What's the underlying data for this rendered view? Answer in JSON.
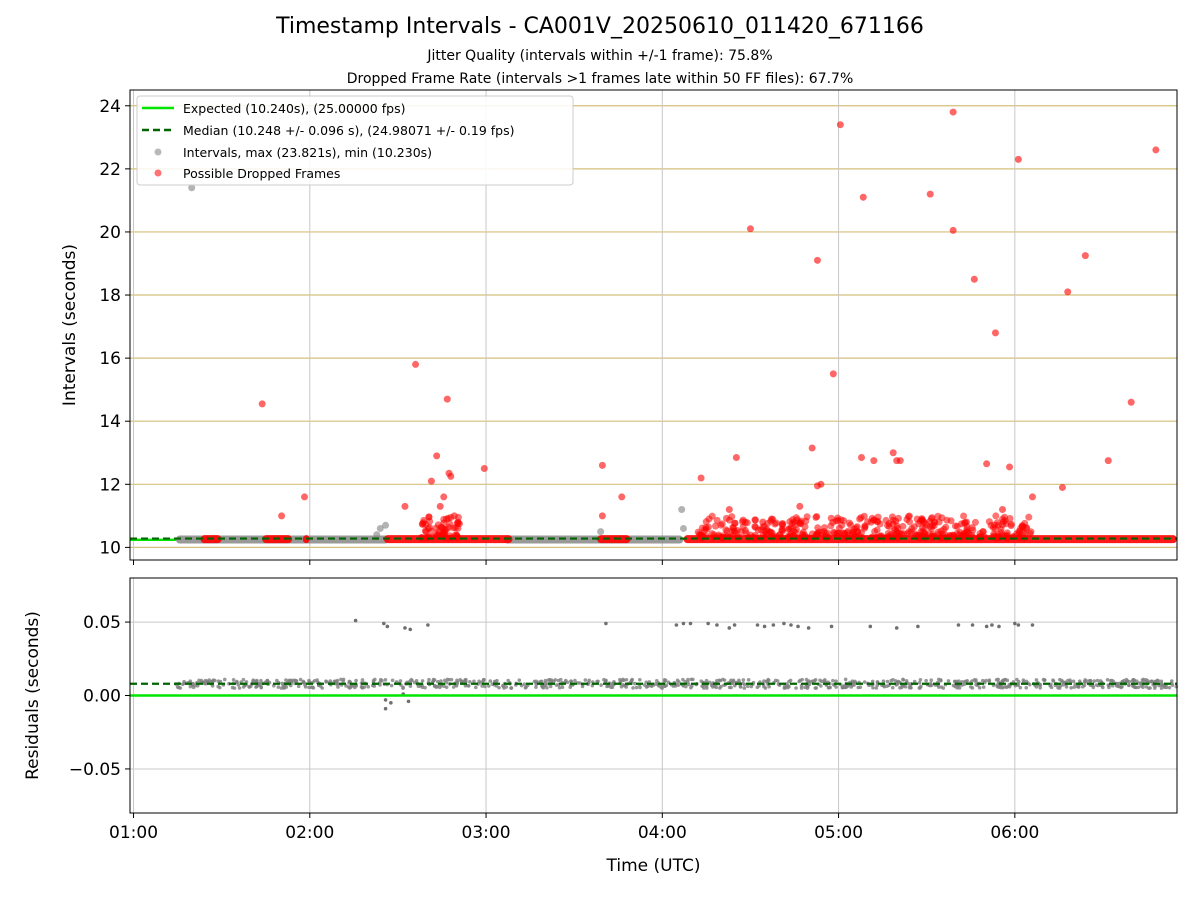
{
  "title": "Timestamp Intervals - CA001V_20250610_011420_671166",
  "subtitle_1": "Jitter Quality (intervals within +/-1 frame): 75.8%",
  "subtitle_2": "Dropped Frame Rate (intervals >1 frames late within 50 FF files): 67.7%",
  "colors": {
    "expected": "#00e600",
    "median": "#006400",
    "intervals": "#808080",
    "dropped": "#ff0000",
    "hgrid_top": "#d4bf7a",
    "grid": "#c8c8c8"
  },
  "chart_data": [
    {
      "type": "scatter",
      "ylabel": "Intervals (seconds)",
      "ylim": [
        9.6,
        24.5
      ],
      "yticks": [
        10,
        12,
        14,
        16,
        18,
        20,
        22,
        24
      ],
      "xlim": [
        0.98,
        6.92
      ],
      "xticks": [
        1,
        2,
        3,
        4,
        5,
        6
      ],
      "xtick_labels": [
        "01:00",
        "02:00",
        "03:00",
        "04:00",
        "05:00",
        "06:00"
      ],
      "grid": true,
      "legend_position": "upper-left",
      "legend": [
        "Expected (10.240s), (25.00000 fps)",
        "Median (10.248 +/- 0.096 s), (24.98071 +/- 0.19 fps)",
        "Intervals, max (23.821s), min (10.230s)",
        "Possible Dropped Frames"
      ],
      "expected_y": 10.24,
      "median_y": 10.248,
      "intervals_band": {
        "y": 10.248,
        "x_ranges": [
          [
            1.24,
            2.45
          ],
          [
            3.1,
            4.12
          ]
        ]
      },
      "intervals_points": [
        [
          1.33,
          21.4
        ],
        [
          2.38,
          10.4
        ],
        [
          2.4,
          10.6
        ],
        [
          2.43,
          10.7
        ],
        [
          3.65,
          10.5
        ],
        [
          4.11,
          11.2
        ],
        [
          4.12,
          10.6
        ]
      ],
      "dropped_bands": [
        {
          "y": 10.26,
          "x_ranges": [
            [
              1.38,
              1.5
            ],
            [
              1.73,
              1.9
            ],
            [
              1.96,
              2.0
            ],
            [
              2.42,
              3.15
            ],
            [
              3.63,
              3.82
            ],
            [
              4.12,
              6.92
            ]
          ]
        }
      ],
      "dropped_points": [
        [
          1.73,
          14.55
        ],
        [
          1.84,
          11.0
        ],
        [
          1.97,
          11.6
        ],
        [
          2.54,
          11.3
        ],
        [
          2.6,
          15.8
        ],
        [
          2.66,
          10.5
        ],
        [
          2.69,
          12.1
        ],
        [
          2.72,
          12.9
        ],
        [
          2.74,
          11.3
        ],
        [
          2.76,
          11.6
        ],
        [
          2.78,
          14.7
        ],
        [
          2.79,
          12.35
        ],
        [
          2.8,
          12.25
        ],
        [
          2.82,
          11.0
        ],
        [
          2.84,
          10.8
        ],
        [
          2.99,
          12.5
        ],
        [
          3.66,
          12.6
        ],
        [
          3.66,
          11.0
        ],
        [
          3.77,
          11.6
        ],
        [
          4.22,
          12.2
        ],
        [
          4.38,
          11.2
        ],
        [
          4.42,
          12.85
        ],
        [
          4.5,
          20.1
        ],
        [
          4.57,
          10.8
        ],
        [
          4.62,
          10.9
        ],
        [
          4.72,
          10.6
        ],
        [
          4.78,
          11.3
        ],
        [
          4.85,
          13.15
        ],
        [
          4.88,
          19.1
        ],
        [
          4.88,
          11.95
        ],
        [
          4.9,
          12.0
        ],
        [
          4.97,
          15.5
        ],
        [
          5.01,
          23.4
        ],
        [
          5.13,
          12.85
        ],
        [
          5.14,
          21.1
        ],
        [
          5.2,
          12.75
        ],
        [
          5.31,
          13.0
        ],
        [
          5.33,
          12.75
        ],
        [
          5.35,
          12.75
        ],
        [
          5.52,
          21.2
        ],
        [
          5.65,
          20.05
        ],
        [
          5.65,
          23.8
        ],
        [
          5.77,
          18.5
        ],
        [
          5.84,
          12.65
        ],
        [
          5.89,
          16.8
        ],
        [
          5.93,
          11.2
        ],
        [
          5.97,
          12.55
        ],
        [
          6.02,
          22.3
        ],
        [
          6.1,
          11.6
        ],
        [
          6.27,
          11.9
        ],
        [
          6.3,
          18.1
        ],
        [
          6.4,
          19.25
        ],
        [
          6.53,
          12.75
        ],
        [
          6.66,
          14.6
        ],
        [
          6.8,
          22.6
        ]
      ],
      "dropped_cloud": {
        "x_ranges": [
          [
            4.2,
            6.1
          ]
        ],
        "y_range": [
          10.3,
          11.0
        ]
      },
      "dropped_cloud_small": {
        "x_ranges": [
          [
            2.63,
            2.85
          ]
        ],
        "y_range": [
          10.3,
          11.0
        ]
      }
    },
    {
      "type": "scatter",
      "xlabel": "Time (UTC)",
      "ylabel": "Residuals (seconds)",
      "ylim": [
        -0.08,
        0.08
      ],
      "yticks": [
        -0.05,
        0.0,
        0.05
      ],
      "ytick_labels": [
        "−0.05",
        "0.00",
        "0.05"
      ],
      "xlim": [
        0.98,
        6.92
      ],
      "xticks": [
        1,
        2,
        3,
        4,
        5,
        6
      ],
      "xtick_labels": [
        "01:00",
        "02:00",
        "03:00",
        "04:00",
        "05:00",
        "06:00"
      ],
      "grid": true,
      "zero_line_y": 0.0,
      "median_y": 0.008,
      "residual_band": {
        "x_ranges": [
          [
            1.24,
            6.92
          ]
        ],
        "y_range": [
          0.005,
          0.011
        ]
      },
      "residual_points": [
        [
          2.26,
          0.051
        ],
        [
          2.42,
          0.049
        ],
        [
          2.44,
          0.047
        ],
        [
          2.54,
          0.046
        ],
        [
          2.57,
          0.045
        ],
        [
          2.67,
          0.048
        ],
        [
          3.68,
          0.049
        ],
        [
          4.08,
          0.048
        ],
        [
          4.12,
          0.049
        ],
        [
          4.16,
          0.049
        ],
        [
          4.26,
          0.049
        ],
        [
          4.31,
          0.048
        ],
        [
          4.38,
          0.046
        ],
        [
          4.41,
          0.048
        ],
        [
          4.54,
          0.048
        ],
        [
          4.58,
          0.047
        ],
        [
          4.63,
          0.048
        ],
        [
          4.69,
          0.049
        ],
        [
          4.73,
          0.048
        ],
        [
          4.77,
          0.047
        ],
        [
          4.83,
          0.046
        ],
        [
          4.96,
          0.047
        ],
        [
          5.18,
          0.047
        ],
        [
          5.33,
          0.046
        ],
        [
          5.45,
          0.047
        ],
        [
          5.68,
          0.048
        ],
        [
          5.76,
          0.048
        ],
        [
          5.84,
          0.047
        ],
        [
          5.87,
          0.048
        ],
        [
          5.91,
          0.047
        ],
        [
          6.0,
          0.049
        ],
        [
          6.02,
          0.048
        ],
        [
          6.1,
          0.048
        ],
        [
          2.43,
          -0.003
        ],
        [
          2.43,
          -0.009
        ],
        [
          2.46,
          -0.005
        ],
        [
          2.53,
          0.001
        ],
        [
          2.56,
          -0.004
        ]
      ]
    }
  ]
}
